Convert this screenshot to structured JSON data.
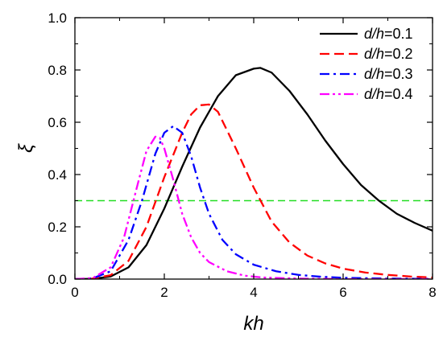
{
  "chart_data": {
    "type": "line",
    "xlabel": "kh",
    "ylabel": "ξ",
    "xlim": [
      0,
      8
    ],
    "ylim": [
      0,
      1.0
    ],
    "xticks": [
      0,
      2,
      4,
      6,
      8
    ],
    "yticks": [
      0.0,
      0.2,
      0.4,
      0.6,
      0.8,
      1.0
    ],
    "xtick_labels": [
      "0",
      "2",
      "4",
      "6",
      "8"
    ],
    "ytick_labels": [
      "0.0",
      "0.2",
      "0.4",
      "0.6",
      "0.8",
      "1.0"
    ],
    "grid": false,
    "legend_position": "top-right",
    "series": [
      {
        "name": "d/h=0.1",
        "name_italic": "d/h",
        "name_rest": "=0.1",
        "color": "#000000",
        "dash": "solid",
        "x": [
          0,
          0.4,
          0.8,
          1.2,
          1.6,
          2.0,
          2.4,
          2.8,
          3.2,
          3.6,
          4.0,
          4.15,
          4.4,
          4.8,
          5.2,
          5.6,
          6.0,
          6.4,
          6.8,
          7.2,
          7.6,
          8.0
        ],
        "y": [
          0,
          0.001,
          0.01,
          0.045,
          0.13,
          0.27,
          0.43,
          0.58,
          0.7,
          0.78,
          0.805,
          0.808,
          0.79,
          0.72,
          0.63,
          0.53,
          0.44,
          0.36,
          0.3,
          0.25,
          0.215,
          0.185
        ]
      },
      {
        "name": "d/h=0.2",
        "name_italic": "d/h",
        "name_rest": "=0.2",
        "color": "#ff0000",
        "dash": "dashed",
        "x": [
          0,
          0.4,
          0.8,
          1.2,
          1.6,
          2.0,
          2.4,
          2.6,
          2.8,
          3.0,
          3.2,
          3.6,
          4.0,
          4.4,
          4.8,
          5.2,
          5.6,
          6.0,
          6.5,
          7.0,
          7.5,
          8.0
        ],
        "y": [
          0,
          0.002,
          0.015,
          0.07,
          0.2,
          0.39,
          0.56,
          0.63,
          0.665,
          0.668,
          0.64,
          0.5,
          0.35,
          0.22,
          0.14,
          0.09,
          0.06,
          0.04,
          0.025,
          0.016,
          0.01,
          0.006
        ]
      },
      {
        "name": "d/h=0.3",
        "name_italic": "d/h",
        "name_rest": "=0.3",
        "color": "#0000ff",
        "dash": "dashdot",
        "x": [
          0,
          0.4,
          0.8,
          1.2,
          1.5,
          1.8,
          2.0,
          2.2,
          2.4,
          2.6,
          2.8,
          3.0,
          3.3,
          3.6,
          4.0,
          4.5,
          5.0,
          5.5,
          6.0,
          7.0,
          8.0
        ],
        "y": [
          0,
          0.003,
          0.03,
          0.15,
          0.3,
          0.48,
          0.56,
          0.585,
          0.56,
          0.47,
          0.35,
          0.25,
          0.15,
          0.095,
          0.055,
          0.03,
          0.016,
          0.009,
          0.005,
          0.002,
          0.001
        ]
      },
      {
        "name": "d/h=0.4",
        "name_italic": "d/h",
        "name_rest": "=0.4",
        "color": "#ff00ff",
        "dash": "dashdotdot",
        "x": [
          0,
          0.4,
          0.8,
          1.1,
          1.4,
          1.6,
          1.8,
          1.9,
          2.0,
          2.2,
          2.4,
          2.6,
          2.8,
          3.0,
          3.4,
          3.8,
          4.2,
          5.0,
          6.0,
          8.0
        ],
        "y": [
          0,
          0.004,
          0.045,
          0.16,
          0.36,
          0.49,
          0.545,
          0.54,
          0.5,
          0.38,
          0.25,
          0.16,
          0.1,
          0.065,
          0.03,
          0.013,
          0.006,
          0.002,
          0.0,
          0.0
        ]
      }
    ],
    "reference_line": {
      "y": 0.3,
      "color": "#22dd22",
      "dash": "dashed"
    }
  }
}
